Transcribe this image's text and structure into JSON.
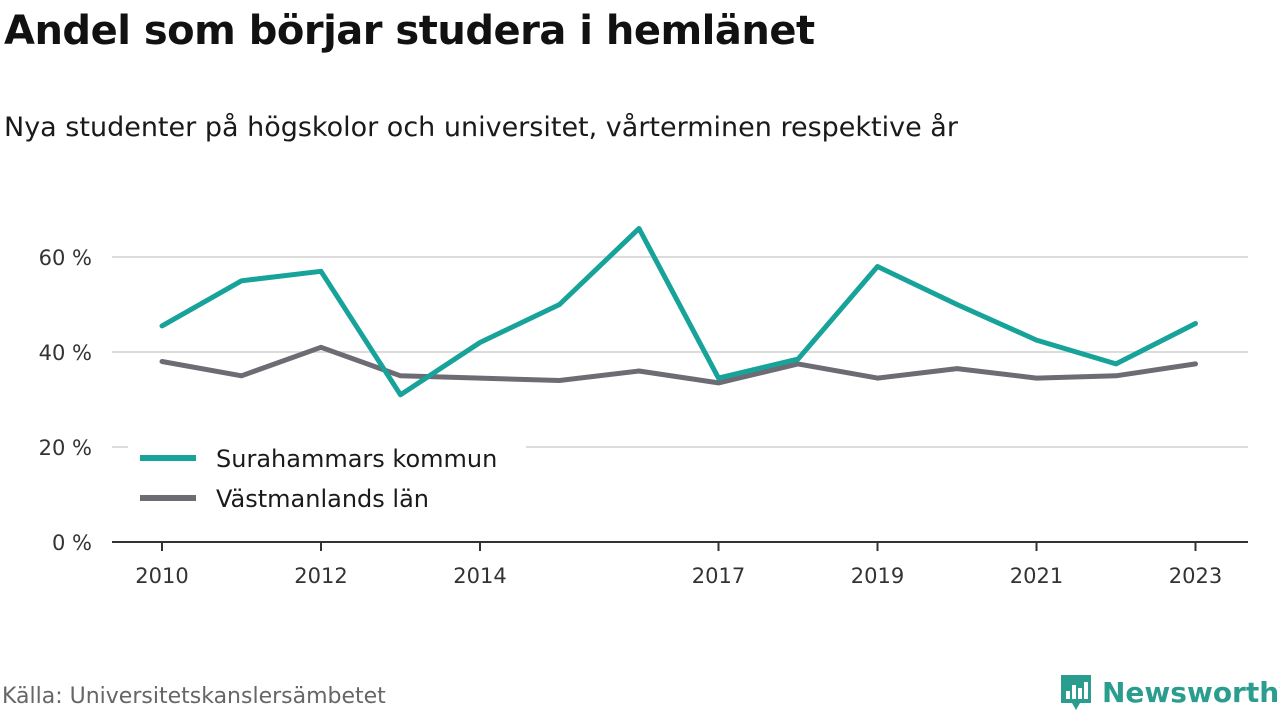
{
  "title": "Andel som börjar studera i hemlänet",
  "subtitle": "Nya studenter på högskolor och universitet, vårterminen respektive år",
  "source": "Källa: Universitetskanslersämbetet",
  "brand": {
    "name": "Newsworthy",
    "color": "#2a9d8f",
    "icon": "bar-chart-icon"
  },
  "chart_data": {
    "type": "line",
    "x": [
      2010,
      2011,
      2012,
      2013,
      2014,
      2015,
      2016,
      2017,
      2018,
      2019,
      2020,
      2021,
      2022,
      2023
    ],
    "xticks": [
      2010,
      2012,
      2014,
      2017,
      2019,
      2021,
      2023
    ],
    "xtick_labels": [
      "2010",
      "2012",
      "2014",
      "2017",
      "2019",
      "2021",
      "2023"
    ],
    "yticks": [
      0,
      20,
      40,
      60
    ],
    "ytick_labels": [
      "0 %",
      "20 %",
      "40 %",
      "60 %"
    ],
    "ylim": [
      0,
      70
    ],
    "grid": true,
    "legend_position": "bottom-left",
    "series": [
      {
        "name": "Surahammars kommun",
        "color": "#17a39a",
        "values": [
          45.5,
          55.0,
          57.0,
          31.0,
          42.0,
          50.0,
          66.0,
          34.5,
          38.5,
          58.0,
          50.0,
          42.5,
          37.5,
          46.0
        ]
      },
      {
        "name": "Västmanlands län",
        "color": "#6d6b73",
        "values": [
          38.0,
          35.0,
          41.0,
          35.0,
          34.5,
          34.0,
          36.0,
          33.5,
          37.5,
          34.5,
          36.5,
          34.5,
          35.0,
          37.5
        ]
      }
    ]
  }
}
